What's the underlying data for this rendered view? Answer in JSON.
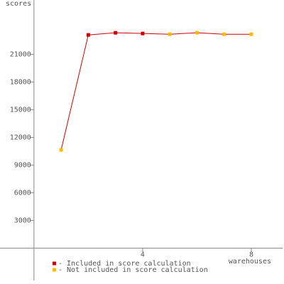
{
  "chart_data": {
    "type": "line",
    "y_label": "scores",
    "x_label": "warehouses",
    "x": [
      1,
      2,
      3,
      4,
      5,
      6,
      7,
      8
    ],
    "line_color": "#cc0000",
    "series": [
      {
        "name": "- Included in score calculation",
        "color": "#cc0000",
        "values": [
          null,
          23115,
          23346,
          23270,
          null,
          null,
          null,
          null
        ]
      },
      {
        "name": "- Not included in score calculation",
        "color": "#ffbb00",
        "values": [
          10650,
          null,
          null,
          null,
          23190,
          23350,
          23190,
          23190
        ]
      }
    ],
    "xlim": [
      -1.25,
      9.15
    ],
    "ylim": [
      -3500,
      26900
    ],
    "xticks": [
      4,
      8
    ],
    "yticks": [
      3000,
      6000,
      9000,
      12000,
      15000,
      18000,
      21000
    ]
  }
}
